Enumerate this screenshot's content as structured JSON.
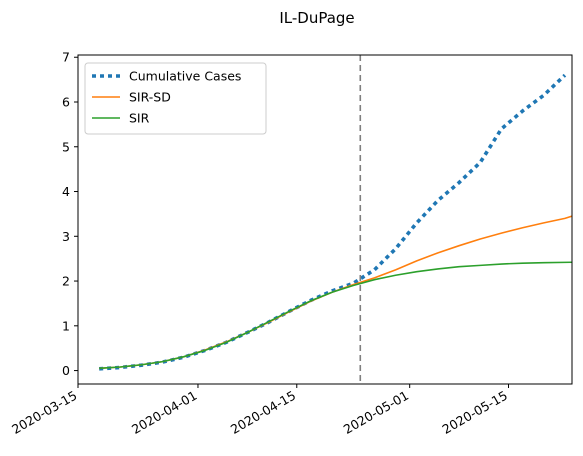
{
  "chart_data": {
    "type": "line",
    "title": "IL-DuPage",
    "xlabel": "",
    "ylabel": "",
    "x_range": [
      "2020-03-15",
      "2020-05-24"
    ],
    "ylim": [
      -0.3,
      7.05
    ],
    "x_ticks": [
      "2020-03-15",
      "2020-04-01",
      "2020-04-15",
      "2020-05-01",
      "2020-05-15"
    ],
    "y_ticks": [
      0,
      1,
      2,
      3,
      4,
      5,
      6,
      7
    ],
    "grid": false,
    "legend_position": "top-left",
    "vline": {
      "x": "2020-04-24",
      "color": "#7f7f7f",
      "style": "dashed"
    },
    "series": [
      {
        "name": "Cumulative Cases",
        "color": "#1f77b4",
        "style": "dotted",
        "points": [
          [
            "2020-03-18",
            0.04
          ],
          [
            "2020-03-21",
            0.07
          ],
          [
            "2020-03-24",
            0.12
          ],
          [
            "2020-03-27",
            0.19
          ],
          [
            "2020-03-30",
            0.3
          ],
          [
            "2020-04-02",
            0.45
          ],
          [
            "2020-04-05",
            0.63
          ],
          [
            "2020-04-08",
            0.85
          ],
          [
            "2020-04-11",
            1.08
          ],
          [
            "2020-04-14",
            1.33
          ],
          [
            "2020-04-17",
            1.57
          ],
          [
            "2020-04-20",
            1.78
          ],
          [
            "2020-04-23",
            1.95
          ],
          [
            "2020-04-26",
            2.25
          ],
          [
            "2020-04-29",
            2.72
          ],
          [
            "2020-05-02",
            3.3
          ],
          [
            "2020-05-05",
            3.8
          ],
          [
            "2020-05-08",
            4.2
          ],
          [
            "2020-05-11",
            4.65
          ],
          [
            "2020-05-14",
            5.4
          ],
          [
            "2020-05-17",
            5.8
          ],
          [
            "2020-05-20",
            6.15
          ],
          [
            "2020-05-23",
            6.6
          ]
        ]
      },
      {
        "name": "SIR-SD",
        "color": "#ff7f0e",
        "style": "solid",
        "points": [
          [
            "2020-03-18",
            0.05
          ],
          [
            "2020-03-21",
            0.08
          ],
          [
            "2020-03-24",
            0.13
          ],
          [
            "2020-03-27",
            0.2
          ],
          [
            "2020-03-30",
            0.31
          ],
          [
            "2020-04-02",
            0.46
          ],
          [
            "2020-04-05",
            0.64
          ],
          [
            "2020-04-08",
            0.85
          ],
          [
            "2020-04-11",
            1.08
          ],
          [
            "2020-04-14",
            1.32
          ],
          [
            "2020-04-17",
            1.55
          ],
          [
            "2020-04-20",
            1.75
          ],
          [
            "2020-04-23",
            1.92
          ],
          [
            "2020-04-26",
            2.07
          ],
          [
            "2020-04-29",
            2.25
          ],
          [
            "2020-05-02",
            2.45
          ],
          [
            "2020-05-05",
            2.63
          ],
          [
            "2020-05-08",
            2.79
          ],
          [
            "2020-05-11",
            2.94
          ],
          [
            "2020-05-14",
            3.07
          ],
          [
            "2020-05-17",
            3.19
          ],
          [
            "2020-05-20",
            3.3
          ],
          [
            "2020-05-23",
            3.4
          ],
          [
            "2020-05-24",
            3.45
          ]
        ]
      },
      {
        "name": "SIR",
        "color": "#2ca02c",
        "style": "solid",
        "points": [
          [
            "2020-03-18",
            0.05
          ],
          [
            "2020-03-21",
            0.08
          ],
          [
            "2020-03-24",
            0.13
          ],
          [
            "2020-03-27",
            0.2
          ],
          [
            "2020-03-30",
            0.31
          ],
          [
            "2020-04-02",
            0.45
          ],
          [
            "2020-04-05",
            0.63
          ],
          [
            "2020-04-08",
            0.85
          ],
          [
            "2020-04-11",
            1.09
          ],
          [
            "2020-04-14",
            1.33
          ],
          [
            "2020-04-17",
            1.56
          ],
          [
            "2020-04-20",
            1.75
          ],
          [
            "2020-04-23",
            1.9
          ],
          [
            "2020-04-26",
            2.03
          ],
          [
            "2020-04-29",
            2.13
          ],
          [
            "2020-05-02",
            2.21
          ],
          [
            "2020-05-05",
            2.27
          ],
          [
            "2020-05-08",
            2.32
          ],
          [
            "2020-05-11",
            2.35
          ],
          [
            "2020-05-14",
            2.38
          ],
          [
            "2020-05-17",
            2.4
          ],
          [
            "2020-05-20",
            2.41
          ],
          [
            "2020-05-24",
            2.42
          ]
        ]
      }
    ]
  }
}
